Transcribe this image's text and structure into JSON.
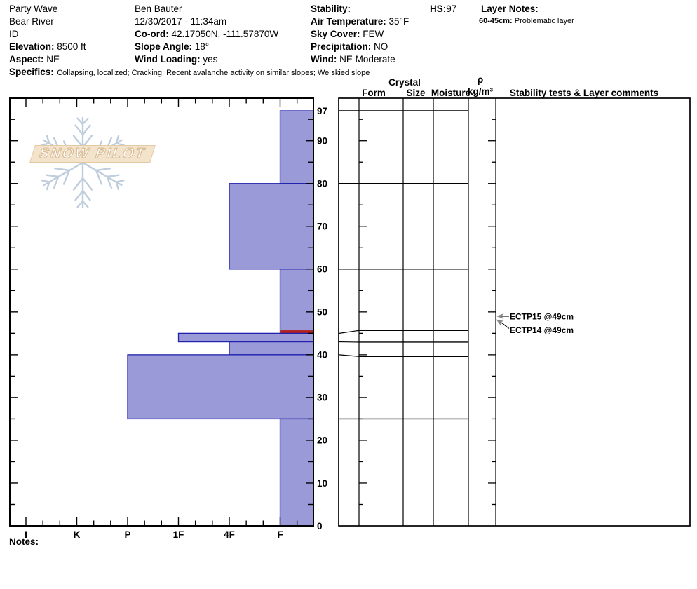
{
  "header": {
    "col1": [
      {
        "label": "",
        "value": "Party Wave"
      },
      {
        "label": "",
        "value": "Bear River"
      },
      {
        "label": "",
        "value": "ID"
      },
      {
        "label": "Elevation:",
        "value": "8500 ft"
      },
      {
        "label": "Aspect:",
        "value": "NE"
      }
    ],
    "col2": [
      {
        "label": "",
        "value": "Ben Bauter"
      },
      {
        "label": "",
        "value": "12/30/2017 - 11:34am"
      },
      {
        "label": "Co-ord:",
        "value": "42.17050N, -111.57870W"
      },
      {
        "label": "Slope Angle:",
        "value": "18°"
      },
      {
        "label": "Wind Loading:",
        "value": "yes"
      }
    ],
    "col3": [
      {
        "label": "Stability:",
        "value": ""
      },
      {
        "label": "Air Temperature:",
        "value": "35°F"
      },
      {
        "label": "Sky Cover:",
        "value": "FEW"
      },
      {
        "label": "Precipitation:",
        "value": "NO"
      },
      {
        "label": "Wind:",
        "value": "NE Moderate"
      }
    ],
    "hs": {
      "label": "HS:",
      "value": "97"
    },
    "layer_notes": {
      "title": "Layer Notes:",
      "items": [
        {
          "range": "60-45cm:",
          "text": "Problematic layer"
        }
      ]
    },
    "specifics": {
      "label": "Specifics:",
      "text": "Collapsing, localized;  Cracking;  Recent avalanche activity on similar slopes;  We skied slope"
    }
  },
  "watermark": {
    "text": "SNOW PILOT"
  },
  "table_headers": {
    "crystal": "Crystal",
    "form": "Form",
    "size": "Size",
    "moisture": "Moisture",
    "rho": "ρ",
    "rho_units": "kg/m³",
    "stability": "Stability tests & Layer comments"
  },
  "notes_label": "Notes:",
  "chart_data": {
    "type": "bar",
    "orientation": "horizontal-profile",
    "title": "Snowpit hardness profile",
    "hardness_scale": [
      "I",
      "K",
      "P",
      "1F",
      "4F",
      "F"
    ],
    "depth_axis": {
      "unit": "cm",
      "min": 0,
      "max": 100,
      "tick_labels": [
        97,
        90,
        80,
        70,
        60,
        50,
        40,
        30,
        20,
        10,
        0
      ],
      "surface_cm": 97
    },
    "layers": [
      {
        "top_cm": 97,
        "bottom_cm": 80,
        "hardness": "F"
      },
      {
        "top_cm": 80,
        "bottom_cm": 60,
        "hardness": "4F"
      },
      {
        "top_cm": 60,
        "bottom_cm": 45,
        "hardness": "F",
        "flag": "problematic-bottom"
      },
      {
        "top_cm": 45,
        "bottom_cm": 43,
        "hardness": "1F"
      },
      {
        "top_cm": 43,
        "bottom_cm": 40,
        "hardness": "4F"
      },
      {
        "top_cm": 40,
        "bottom_cm": 25,
        "hardness": "P"
      },
      {
        "top_cm": 25,
        "bottom_cm": 0,
        "hardness": "F"
      }
    ],
    "stability_tests": [
      {
        "label": "ECTP15 @49cm",
        "depth_cm": 49
      },
      {
        "label": "ECTP14 @49cm",
        "depth_cm": 49
      }
    ]
  },
  "colors": {
    "bar_fill": "#9b9ad8",
    "bar_border": "#2121ad",
    "flag_red": "#b22222",
    "line_black": "#000000",
    "arrow_gray": "#8a8a8a",
    "flake_blue": "#bccbdb",
    "banner_tan": "#f3e3cb"
  }
}
